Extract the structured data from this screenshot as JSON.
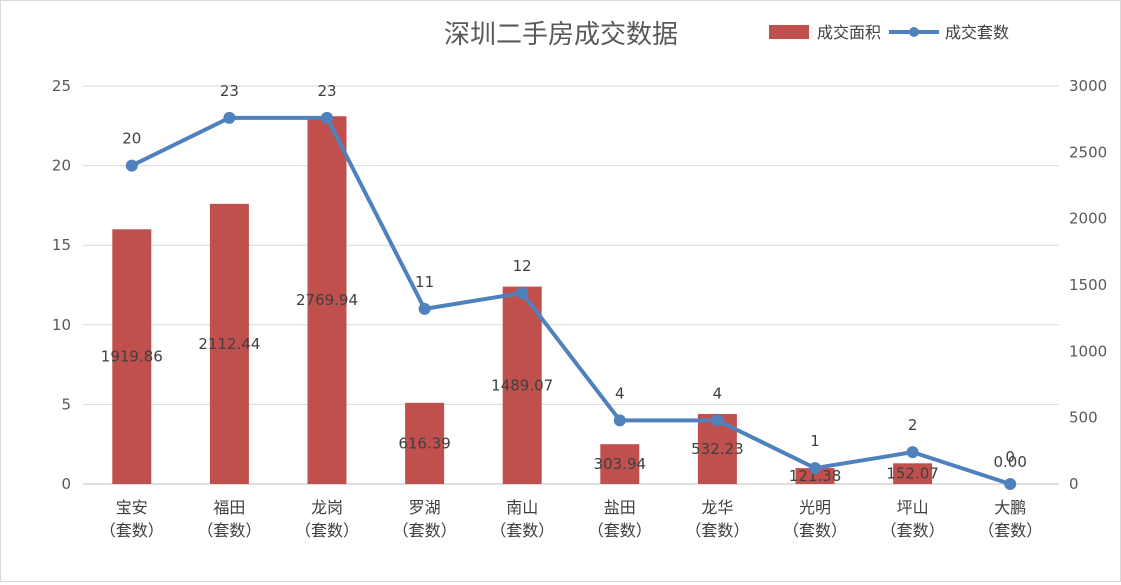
{
  "chart_data": {
    "type": "bar",
    "title": "深圳二手房成交数据",
    "categories": [
      [
        "宝安",
        "（套数）"
      ],
      [
        "福田",
        "（套数）"
      ],
      [
        "龙岗",
        "（套数）"
      ],
      [
        "罗湖",
        "（套数）"
      ],
      [
        "南山",
        "（套数）"
      ],
      [
        "盐田",
        "（套数）"
      ],
      [
        "龙华",
        "（套数）"
      ],
      [
        "光明",
        "（套数）"
      ],
      [
        "坪山",
        "（套数）"
      ],
      [
        "大鹏",
        "（套数）"
      ]
    ],
    "left_axis": {
      "ylim": [
        0,
        25
      ],
      "ticks": [
        "0",
        "5",
        "10",
        "15",
        "20",
        "25"
      ]
    },
    "right_axis": {
      "ylim": [
        0,
        3000
      ],
      "ticks": [
        "0",
        "500",
        "1000",
        "1500",
        "2000",
        "2500",
        "3000"
      ]
    },
    "series": [
      {
        "name": "成交面积",
        "type": "bar",
        "axis": "left",
        "color": "#c0504d",
        "values": [
          16.0,
          17.6,
          23.1,
          5.1,
          12.4,
          2.5,
          4.4,
          1.0,
          1.3,
          0.0
        ],
        "labels": [
          "1919.86",
          "2112.44",
          "2769.94",
          "616.39",
          "1489.07",
          "303.94",
          "532.23",
          "121.38",
          "152.07",
          "0.00"
        ]
      },
      {
        "name": "成交套数",
        "type": "line",
        "axis": "right",
        "color": "#4f81bd",
        "values": [
          2400,
          2760,
          2760,
          1320,
          1440,
          480,
          480,
          120,
          240,
          0
        ],
        "labels": [
          "20",
          "23",
          "23",
          "11",
          "12",
          "4",
          "4",
          "1",
          "2",
          "0"
        ]
      }
    ],
    "grid": true,
    "legend": "top-right"
  }
}
